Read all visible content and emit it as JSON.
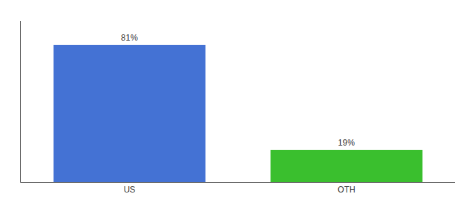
{
  "chart_data": {
    "type": "bar",
    "categories": [
      "US",
      "OTH"
    ],
    "values": [
      81,
      19
    ],
    "value_labels": [
      "81%",
      "19%"
    ],
    "data_labels": true,
    "colors": [
      "#4472d4",
      "#3abf2e"
    ],
    "ylim": [
      0,
      95
    ],
    "tick_labels": "x",
    "grid": false
  }
}
